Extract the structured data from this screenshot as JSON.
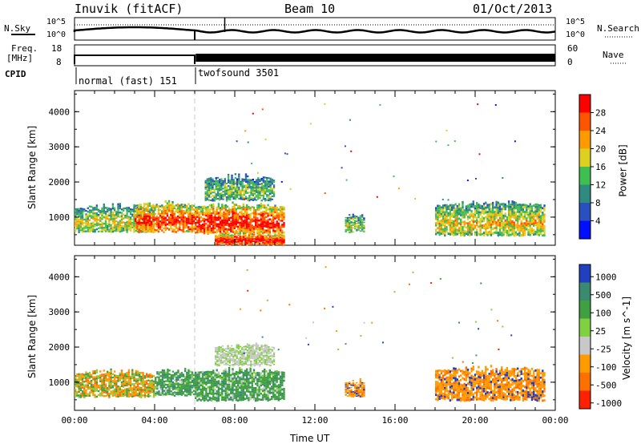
{
  "header": {
    "station": "Inuvik (fitACF)",
    "beam": "Beam 10",
    "date": "01/Oct/2013"
  },
  "summary": {
    "nsky_label": "N.Sky",
    "nsky_ticks": [
      "10^5",
      "10^0"
    ],
    "nsearch_label": "N.Search",
    "nsearch_ticks": [
      "10^5",
      "10^0"
    ],
    "freq_label": "Freq.",
    "freq_unit": "[MHz]",
    "freq_ticks": [
      "18",
      "8"
    ],
    "nave_label": "Nave",
    "nave_ticks": [
      "60",
      "0"
    ],
    "cpid_label": "CPID",
    "cpid_modes": [
      {
        "name": "normal (fast) 151",
        "start_hour": 0,
        "end_hour": 6
      },
      {
        "name": "twofsound 3501",
        "start_hour": 6,
        "end_hour": 24
      }
    ]
  },
  "chart_data": [
    {
      "type": "heatmap",
      "title": "",
      "quantity": "Power",
      "xlabel": "",
      "ylabel": "Slant Range [km]",
      "colorbar_label": "Power [dB]",
      "colorbar_ticks": [
        4,
        8,
        12,
        16,
        20,
        24,
        28
      ],
      "colorbar_colors": [
        "#0010ff",
        "#2a50c0",
        "#2f8a80",
        "#3fbe52",
        "#ddd020",
        "#ff9a00",
        "#ff5500",
        "#ff0000"
      ],
      "colorbar_range": [
        0,
        32
      ],
      "xlim_hours": [
        0,
        24
      ],
      "xticks": [
        "00:00",
        "04:00",
        "08:00",
        "12:00",
        "16:00",
        "20:00",
        "00:00"
      ],
      "ylim": [
        200,
        4600
      ],
      "yticks": [
        1000,
        2000,
        3000,
        4000
      ],
      "echo_regions": [
        {
          "t0": 0.0,
          "t1": 4.0,
          "r0": 600,
          "r1": 1250,
          "level": 0.55
        },
        {
          "t0": 3.0,
          "t1": 6.0,
          "r0": 600,
          "r1": 1350,
          "level": 0.85
        },
        {
          "t0": 6.0,
          "t1": 10.5,
          "r0": 550,
          "r1": 1300,
          "level": 0.9
        },
        {
          "t0": 6.5,
          "t1": 10.0,
          "r0": 1500,
          "r1": 2100,
          "level": 0.45
        },
        {
          "t0": 7.0,
          "t1": 10.5,
          "r0": 250,
          "r1": 500,
          "level": 0.95
        },
        {
          "t0": 13.5,
          "t1": 14.5,
          "r0": 600,
          "r1": 1000,
          "level": 0.5
        },
        {
          "t0": 18.0,
          "t1": 23.5,
          "r0": 500,
          "r1": 1350,
          "level": 0.6
        }
      ]
    },
    {
      "type": "heatmap",
      "title": "",
      "quantity": "Velocity",
      "xlabel": "Time UT",
      "ylabel": "Slant Range [km]",
      "colorbar_label": "Velocity [m s^-1]",
      "colorbar_ticks": [
        1000,
        500,
        100,
        25,
        -25,
        -100,
        -500,
        -1000
      ],
      "colorbar_colors": [
        "#2040c0",
        "#3a8a70",
        "#3ea040",
        "#80d040",
        "#c8c8c8",
        "#ff9a00",
        "#ff7000",
        "#ff2000"
      ],
      "xlim_hours": [
        0,
        24
      ],
      "xticks": [
        "00:00",
        "04:00",
        "08:00",
        "12:00",
        "16:00",
        "20:00",
        "00:00"
      ],
      "ylim": [
        200,
        4600
      ],
      "yticks": [
        1000,
        2000,
        3000,
        4000
      ],
      "echo_regions": [
        {
          "t0": 0.0,
          "t1": 4.0,
          "r0": 600,
          "r1": 1250,
          "kind": "mixed-green-orange"
        },
        {
          "t0": 4.0,
          "t1": 6.0,
          "r0": 650,
          "r1": 1300,
          "kind": "green"
        },
        {
          "t0": 6.0,
          "t1": 10.5,
          "r0": 500,
          "r1": 1300,
          "kind": "green"
        },
        {
          "t0": 7.0,
          "t1": 10.0,
          "r0": 1500,
          "r1": 2000,
          "kind": "grey"
        },
        {
          "t0": 13.5,
          "t1": 14.5,
          "r0": 600,
          "r1": 1000,
          "kind": "orange"
        },
        {
          "t0": 18.0,
          "t1": 23.5,
          "r0": 500,
          "r1": 1350,
          "kind": "orange"
        }
      ]
    }
  ]
}
